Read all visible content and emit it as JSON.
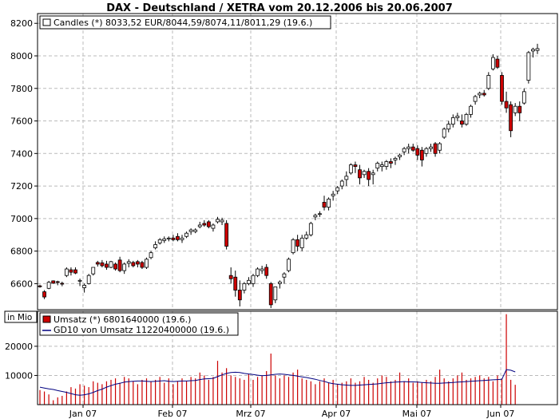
{
  "chart_data": [
    {
      "type": "candlestick",
      "title": "DAX - Deutschland / XETRA vom 20.12.2006 bis 20.06.2007",
      "legend": "Candles (*) 8033,52 EUR/8044,59/8074,11/8011,29 (19.6.)",
      "legend_placement": "top-left",
      "ylim": [
        6440,
        8260
      ],
      "y_ticks": [
        "6600",
        "6800",
        "7000",
        "7200",
        "7400",
        "7600",
        "7800",
        "8000",
        "8200"
      ],
      "x_ticks": [
        "Jan 07",
        "Feb 07",
        "Mrz 07",
        "Apr 07",
        "Mai 07",
        "Jun 07"
      ],
      "grid": true,
      "colors": {
        "up_fill": "#ffffff",
        "down_fill": "#cc0000",
        "outline": "#000000",
        "grid": "#bbbbbb"
      },
      "candles": [
        [
          6586,
          6593,
          6575,
          6581
        ],
        [
          6550,
          6560,
          6505,
          6518
        ],
        [
          6571,
          6617,
          6566,
          6608
        ],
        [
          6617,
          6620,
          6598,
          6603
        ],
        [
          6612,
          6618,
          6590,
          6608
        ],
        [
          6602,
          6612,
          6584,
          6597
        ],
        [
          6650,
          6700,
          6640,
          6690
        ],
        [
          6685,
          6700,
          6650,
          6670
        ],
        [
          6685,
          6700,
          6658,
          6665
        ],
        [
          6615,
          6631,
          6585,
          6620
        ],
        [
          6575,
          6600,
          6545,
          6590
        ],
        [
          6600,
          6660,
          6595,
          6650
        ],
        [
          6660,
          6700,
          6650,
          6700
        ],
        [
          6730,
          6740,
          6705,
          6720
        ],
        [
          6728,
          6745,
          6700,
          6710
        ],
        [
          6720,
          6740,
          6685,
          6700
        ],
        [
          6700,
          6740,
          6695,
          6735
        ],
        [
          6720,
          6730,
          6680,
          6690
        ],
        [
          6745,
          6765,
          6670,
          6680
        ],
        [
          6680,
          6730,
          6660,
          6720
        ],
        [
          6725,
          6750,
          6700,
          6735
        ],
        [
          6730,
          6740,
          6700,
          6710
        ],
        [
          6735,
          6745,
          6700,
          6720
        ],
        [
          6730,
          6740,
          6690,
          6700
        ],
        [
          6700,
          6760,
          6690,
          6750
        ],
        [
          6760,
          6800,
          6750,
          6790
        ],
        [
          6820,
          6860,
          6810,
          6840
        ],
        [
          6850,
          6880,
          6840,
          6870
        ],
        [
          6865,
          6890,
          6850,
          6875
        ],
        [
          6875,
          6890,
          6860,
          6880
        ],
        [
          6880,
          6900,
          6860,
          6870
        ],
        [
          6890,
          6910,
          6860,
          6870
        ],
        [
          6870,
          6900,
          6850,
          6880
        ],
        [
          6890,
          6920,
          6880,
          6910
        ],
        [
          6920,
          6940,
          6900,
          6930
        ],
        [
          6920,
          6940,
          6910,
          6930
        ],
        [
          6950,
          6980,
          6940,
          6960
        ],
        [
          6970,
          6990,
          6950,
          6960
        ],
        [
          6980,
          6990,
          6940,
          6950
        ],
        [
          6940,
          6970,
          6920,
          6960
        ],
        [
          6980,
          7010,
          6970,
          6995
        ],
        [
          6980,
          7005,
          6960,
          6990
        ],
        [
          6970,
          6990,
          6810,
          6830
        ],
        [
          6650,
          6700,
          6600,
          6630
        ],
        [
          6640,
          6680,
          6520,
          6560
        ],
        [
          6560,
          6620,
          6460,
          6500
        ],
        [
          6560,
          6610,
          6540,
          6600
        ],
        [
          6600,
          6640,
          6590,
          6620
        ],
        [
          6600,
          6660,
          6580,
          6650
        ],
        [
          6650,
          6700,
          6640,
          6690
        ],
        [
          6680,
          6710,
          6660,
          6690
        ],
        [
          6700,
          6720,
          6630,
          6650
        ],
        [
          6600,
          6610,
          6450,
          6470
        ],
        [
          6500,
          6580,
          6480,
          6580
        ],
        [
          6600,
          6620,
          6570,
          6610
        ],
        [
          6640,
          6670,
          6600,
          6660
        ],
        [
          6680,
          6760,
          6670,
          6750
        ],
        [
          6790,
          6880,
          6780,
          6870
        ],
        [
          6870,
          6900,
          6800,
          6830
        ],
        [
          6820,
          6900,
          6800,
          6880
        ],
        [
          6880,
          6920,
          6870,
          6900
        ],
        [
          6900,
          6980,
          6890,
          6970
        ],
        [
          7010,
          7030,
          6990,
          7020
        ],
        [
          7030,
          7045,
          7010,
          7030
        ],
        [
          7100,
          7140,
          7050,
          7070
        ],
        [
          7070,
          7130,
          7050,
          7120
        ],
        [
          7140,
          7170,
          7110,
          7150
        ],
        [
          7170,
          7200,
          7150,
          7190
        ],
        [
          7200,
          7240,
          7180,
          7230
        ],
        [
          7240,
          7290,
          7200,
          7260
        ],
        [
          7280,
          7340,
          7270,
          7330
        ],
        [
          7330,
          7350,
          7280,
          7320
        ],
        [
          7300,
          7330,
          7210,
          7250
        ],
        [
          7270,
          7300,
          7250,
          7290
        ],
        [
          7290,
          7310,
          7200,
          7240
        ],
        [
          7270,
          7300,
          7210,
          7280
        ],
        [
          7310,
          7350,
          7290,
          7340
        ],
        [
          7320,
          7350,
          7290,
          7330
        ],
        [
          7320,
          7360,
          7300,
          7350
        ],
        [
          7350,
          7370,
          7310,
          7340
        ],
        [
          7360,
          7380,
          7330,
          7370
        ],
        [
          7380,
          7400,
          7360,
          7390
        ],
        [
          7410,
          7440,
          7390,
          7430
        ],
        [
          7430,
          7460,
          7400,
          7440
        ],
        [
          7440,
          7460,
          7410,
          7420
        ],
        [
          7430,
          7450,
          7360,
          7390
        ],
        [
          7420,
          7440,
          7320,
          7360
        ],
        [
          7400,
          7440,
          7380,
          7430
        ],
        [
          7430,
          7460,
          7410,
          7440
        ],
        [
          7460,
          7470,
          7380,
          7400
        ],
        [
          7420,
          7470,
          7400,
          7460
        ],
        [
          7500,
          7560,
          7490,
          7550
        ],
        [
          7550,
          7600,
          7530,
          7580
        ],
        [
          7580,
          7640,
          7560,
          7620
        ],
        [
          7620,
          7650,
          7600,
          7630
        ],
        [
          7600,
          7640,
          7560,
          7580
        ],
        [
          7580,
          7650,
          7570,
          7640
        ],
        [
          7640,
          7700,
          7620,
          7690
        ],
        [
          7720,
          7760,
          7700,
          7750
        ],
        [
          7760,
          7780,
          7740,
          7770
        ],
        [
          7770,
          7790,
          7750,
          7760
        ],
        [
          7800,
          7900,
          7790,
          7880
        ],
        [
          7920,
          8010,
          7910,
          7990
        ],
        [
          7980,
          8000,
          7920,
          7930
        ],
        [
          7880,
          7900,
          7700,
          7720
        ],
        [
          7720,
          7780,
          7650,
          7680
        ],
        [
          7700,
          7720,
          7500,
          7540
        ],
        [
          7650,
          7710,
          7630,
          7690
        ],
        [
          7690,
          7720,
          7600,
          7650
        ],
        [
          7710,
          7800,
          7700,
          7780
        ],
        [
          7850,
          8030,
          7830,
          8020
        ],
        [
          8030,
          8050,
          7990,
          8040
        ],
        [
          8033.52,
          8074.11,
          8011.29,
          8044.59
        ]
      ]
    },
    {
      "type": "bar",
      "unit_label": "in Mio",
      "ylim": [
        0,
        32000
      ],
      "y_ticks": [
        "10000",
        "20000"
      ],
      "legend": [
        {
          "name": "Umsatz (*) 6801640000 (19.6.)",
          "color": "#cc0000"
        },
        {
          "name": "GD10 von Umsatz 11220400000 (19.6.)",
          "color": "#000080"
        }
      ],
      "umsatz": [
        5000,
        4500,
        3500,
        1500,
        2500,
        3000,
        4500,
        6000,
        5500,
        7000,
        6500,
        6000,
        8000,
        7500,
        7000,
        8000,
        8500,
        9000,
        7500,
        9500,
        9000,
        8000,
        7000,
        8500,
        9000,
        8000,
        8500,
        9500,
        7500,
        9000,
        7000,
        8000,
        9000,
        8000,
        9500,
        9000,
        11000,
        10000,
        8500,
        9500,
        15000,
        11000,
        12500,
        10000,
        9500,
        9000,
        8500,
        10500,
        8500,
        9500,
        10000,
        11500,
        17500,
        10000,
        9000,
        10000,
        9500,
        11000,
        12000,
        9000,
        8500,
        8000,
        7000,
        8000,
        9000,
        7500,
        8500,
        7000,
        7500,
        8000,
        9000,
        7500,
        8000,
        9500,
        8500,
        7500,
        9000,
        10000,
        9500,
        8000,
        8500,
        11000,
        8000,
        9000,
        7500,
        8000,
        7500,
        8500,
        8000,
        9500,
        12000,
        9000,
        8000,
        9000,
        10000,
        11000,
        8500,
        9000,
        9500,
        10000,
        9000,
        9500,
        8000,
        10000,
        9000,
        31000,
        8500,
        6801.64
      ],
      "gd10": [
        6000,
        5700,
        5400,
        5200,
        4800,
        4500,
        4200,
        3800,
        3400,
        3200,
        3400,
        3700,
        4200,
        4800,
        5300,
        6000,
        6500,
        7000,
        7300,
        7700,
        7900,
        8000,
        8100,
        8100,
        8000,
        7900,
        8000,
        8100,
        8200,
        8000,
        7900,
        8000,
        8100,
        8100,
        8200,
        8300,
        8600,
        8800,
        8900,
        9000,
        9600,
        10200,
        10700,
        11000,
        11100,
        11000,
        10700,
        10500,
        10300,
        10100,
        9900,
        10000,
        10200,
        10400,
        10500,
        10400,
        10200,
        10000,
        9800,
        9500,
        9300,
        9000,
        8700,
        8300,
        8000,
        7500,
        7200,
        7000,
        6800,
        6700,
        6600,
        6600,
        6700,
        6800,
        6900,
        7000,
        7100,
        7300,
        7500,
        7600,
        7700,
        7800,
        7900,
        7800,
        7800,
        7700,
        7600,
        7500,
        7400,
        7300,
        7300,
        7400,
        7500,
        7600,
        7700,
        7800,
        7900,
        8000,
        8100,
        8200,
        8300,
        8400,
        8500,
        8600,
        8700,
        12000,
        11800,
        11220.4
      ]
    }
  ]
}
